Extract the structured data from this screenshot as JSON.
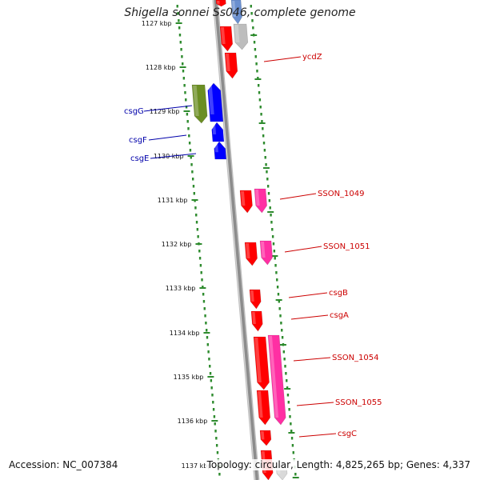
{
  "title": "Shigella sonnei Ss046, complete genome",
  "footer": {
    "accession": "Accession: NC_007384",
    "summary": "Topology: circular, Length: 4,825,265 bp; Genes: 4,337"
  },
  "colors": {
    "backbone": "#8c8c8c",
    "track_dots": "#2e8b2e",
    "gene_red": "#ff0000",
    "gene_pink": "#ff2fa3",
    "gene_blue": "#0000ff",
    "gene_olive": "#6b8e23",
    "gene_gray": "#bdbdbd",
    "label_red": "#cc0000",
    "label_blue": "#0000aa"
  },
  "scale": {
    "unit": "kbp",
    "ticks": [
      "1127 kbp",
      "1128 kbp",
      "1129 kbp",
      "1130 kbp",
      "1131 kbp",
      "1132 kbp",
      "1133 kbp",
      "1134 kbp",
      "1135 kbp",
      "1136 kbp",
      "1137 kbp"
    ]
  },
  "genes_right": [
    {
      "label": "ycdZ",
      "color": "#ff0000"
    },
    {
      "label": "SSON_1049",
      "color": "#ff2fa3"
    },
    {
      "label": "SSON_1051",
      "color": "#ff2fa3"
    },
    {
      "label": "csgB",
      "color": "#ff0000"
    },
    {
      "label": "csgA",
      "color": "#ff0000"
    },
    {
      "label": "SSON_1054",
      "color": "#ff0000"
    },
    {
      "label": "SSON_1055",
      "color": "#ff2fa3"
    },
    {
      "label": "csgC",
      "color": "#ff0000"
    }
  ],
  "genes_left": [
    {
      "label": "csgG",
      "color": "#0000ff"
    },
    {
      "label": "csgF",
      "color": "#0000ff"
    },
    {
      "label": "csgE",
      "color": "#0000ff"
    }
  ]
}
